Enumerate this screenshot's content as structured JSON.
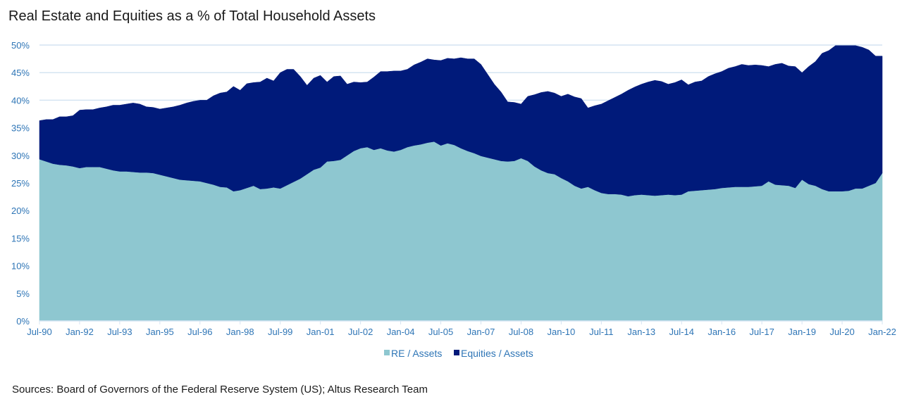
{
  "chart_data": {
    "type": "area",
    "stacked": true,
    "title": "Real Estate and Equities as a % of Total Household Assets",
    "xlabel": "",
    "ylabel": "",
    "ylim": [
      0,
      50
    ],
    "y_ticks": [
      "0%",
      "5%",
      "10%",
      "15%",
      "20%",
      "25%",
      "30%",
      "35%",
      "40%",
      "45%",
      "50%"
    ],
    "y_tick_values": [
      0,
      5,
      10,
      15,
      20,
      25,
      30,
      35,
      40,
      45,
      50
    ],
    "x_start": "Jul-90",
    "x_end": "Jan-22",
    "x_frequency": "quarterly",
    "x_ticks": [
      "Jul-90",
      "Jan-92",
      "Jul-93",
      "Jan-95",
      "Jul-96",
      "Jan-98",
      "Jul-99",
      "Jan-01",
      "Jul-02",
      "Jan-04",
      "Jul-05",
      "Jan-07",
      "Jul-08",
      "Jan-10",
      "Jul-11",
      "Jan-13",
      "Jul-14",
      "Jan-16",
      "Jul-17",
      "Jan-19",
      "Jul-20",
      "Jan-22"
    ],
    "grid": true,
    "legend_position": "bottom",
    "series": [
      {
        "name": "RE / Assets",
        "color": "#8ec7d0",
        "values": [
          29.3,
          28.9,
          28.5,
          28.3,
          28.2,
          28.0,
          27.7,
          27.9,
          27.9,
          27.9,
          27.6,
          27.3,
          27.1,
          27.1,
          27.0,
          26.9,
          26.9,
          26.8,
          26.5,
          26.2,
          25.9,
          25.6,
          25.5,
          25.4,
          25.3,
          25.0,
          24.7,
          24.3,
          24.2,
          23.5,
          23.7,
          24.1,
          24.5,
          23.9,
          24.0,
          24.2,
          24.0,
          24.6,
          25.2,
          25.8,
          26.6,
          27.4,
          27.8,
          28.9,
          29.0,
          29.2,
          30.0,
          30.8,
          31.3,
          31.5,
          31.0,
          31.3,
          30.9,
          30.7,
          31.0,
          31.5,
          31.8,
          32.0,
          32.3,
          32.5,
          31.8,
          32.2,
          31.9,
          31.3,
          30.8,
          30.4,
          29.9,
          29.6,
          29.3,
          29.0,
          28.9,
          29.0,
          29.5,
          29.0,
          28.0,
          27.3,
          26.8,
          26.6,
          25.9,
          25.3,
          24.5,
          24.0,
          24.3,
          23.7,
          23.2,
          23.0,
          23.0,
          22.9,
          22.6,
          22.8,
          22.9,
          22.8,
          22.7,
          22.8,
          22.9,
          22.8,
          22.9,
          23.5,
          23.6,
          23.7,
          23.8,
          23.9,
          24.1,
          24.2,
          24.3,
          24.3,
          24.3,
          24.4,
          24.5,
          25.3,
          24.7,
          24.6,
          24.5,
          24.1,
          25.6,
          24.8,
          24.5,
          23.9,
          23.5,
          23.5,
          23.5,
          23.6,
          24.0,
          24.0,
          24.5,
          25.0,
          26.8
        ]
      },
      {
        "name": "Equities / Assets",
        "color": "#001a7a",
        "values": [
          7.0,
          7.6,
          8.0,
          8.7,
          8.8,
          9.2,
          10.5,
          10.4,
          10.4,
          10.7,
          11.2,
          11.8,
          12.0,
          12.2,
          12.5,
          12.4,
          11.9,
          11.9,
          11.9,
          12.4,
          12.9,
          13.5,
          14.0,
          14.4,
          14.7,
          15.0,
          16.1,
          17.0,
          17.3,
          19.0,
          18.1,
          18.9,
          18.7,
          19.4,
          20.0,
          19.3,
          21.0,
          21.0,
          20.4,
          18.5,
          16.1,
          16.6,
          16.7,
          14.4,
          15.3,
          15.2,
          12.9,
          12.5,
          11.9,
          11.8,
          13.2,
          13.9,
          14.3,
          14.6,
          14.3,
          14.1,
          14.6,
          14.9,
          15.2,
          14.8,
          15.4,
          15.4,
          15.6,
          16.4,
          16.7,
          17.1,
          16.6,
          15.1,
          13.6,
          12.5,
          10.8,
          10.6,
          9.8,
          11.7,
          13.0,
          14.1,
          14.8,
          14.7,
          14.8,
          15.8,
          16.1,
          16.3,
          14.3,
          15.3,
          16.1,
          16.9,
          17.5,
          18.2,
          19.2,
          19.6,
          20.0,
          20.5,
          20.9,
          20.6,
          20.0,
          20.4,
          20.8,
          19.3,
          19.7,
          19.8,
          20.5,
          20.9,
          21.1,
          21.6,
          21.8,
          22.2,
          22.0,
          22.0,
          21.8,
          20.8,
          21.8,
          22.1,
          21.7,
          22.0,
          19.4,
          21.3,
          22.5,
          24.6,
          25.5,
          26.4,
          26.4,
          26.3,
          25.9,
          25.6,
          24.6,
          23.0,
          21.2
        ]
      }
    ]
  },
  "legend": {
    "items": [
      "RE / Assets",
      "Equities / Assets"
    ]
  },
  "source_text": "Sources: Board of Governors of the Federal Reserve System (US); Altus Research Team"
}
